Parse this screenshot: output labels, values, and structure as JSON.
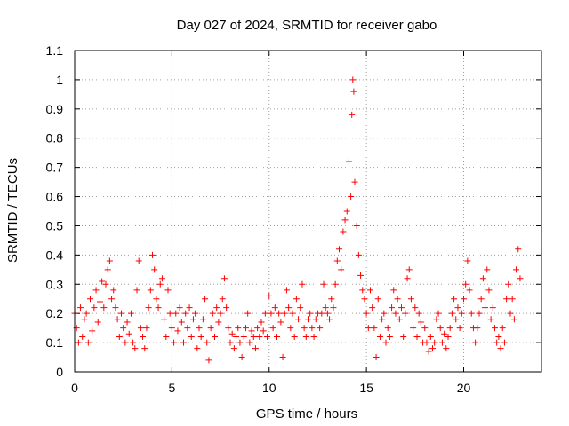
{
  "chart_data": {
    "type": "scatter",
    "title": "Day 027 of 2024, SRMTID for receiver gabo",
    "xlabel": "GPS time / hours",
    "ylabel": "SRMTID / TECUs",
    "xlim": [
      0,
      24
    ],
    "ylim": [
      0,
      1.1
    ],
    "xticks": [
      0,
      5,
      10,
      15,
      20
    ],
    "xtick_labels": [
      "0",
      "5",
      "10",
      "15",
      "20"
    ],
    "yticks": [
      0,
      0.1,
      0.2,
      0.3,
      0.4,
      0.5,
      0.6,
      0.7,
      0.8,
      0.9,
      1,
      1.1
    ],
    "ytick_labels": [
      "0",
      "0.1",
      "0.2",
      "0.3",
      "0.4",
      "0.5",
      "0.6",
      "0.7",
      "0.8",
      "0.9",
      "1",
      "1.1"
    ],
    "grid": true,
    "marker": "+",
    "marker_color": "#ff0000",
    "series": [
      {
        "name": "SRMTID",
        "points": [
          [
            0.0,
            0.2
          ],
          [
            0.1,
            0.15
          ],
          [
            0.2,
            0.1
          ],
          [
            0.3,
            0.22
          ],
          [
            0.4,
            0.12
          ],
          [
            0.5,
            0.18
          ],
          [
            0.6,
            0.2
          ],
          [
            0.7,
            0.1
          ],
          [
            0.8,
            0.25
          ],
          [
            0.9,
            0.14
          ],
          [
            1.0,
            0.22
          ],
          [
            1.1,
            0.28
          ],
          [
            1.2,
            0.17
          ],
          [
            1.3,
            0.24
          ],
          [
            1.4,
            0.31
          ],
          [
            1.5,
            0.22
          ],
          [
            1.6,
            0.3
          ],
          [
            1.7,
            0.35
          ],
          [
            1.8,
            0.38
          ],
          [
            1.9,
            0.25
          ],
          [
            2.0,
            0.28
          ],
          [
            2.1,
            0.22
          ],
          [
            2.2,
            0.18
          ],
          [
            2.3,
            0.12
          ],
          [
            2.4,
            0.2
          ],
          [
            2.5,
            0.15
          ],
          [
            2.6,
            0.1
          ],
          [
            2.7,
            0.17
          ],
          [
            2.8,
            0.13
          ],
          [
            2.9,
            0.2
          ],
          [
            3.0,
            0.1
          ],
          [
            3.1,
            0.08
          ],
          [
            3.2,
            0.28
          ],
          [
            3.3,
            0.38
          ],
          [
            3.4,
            0.15
          ],
          [
            3.5,
            0.12
          ],
          [
            3.6,
            0.08
          ],
          [
            3.7,
            0.15
          ],
          [
            3.8,
            0.22
          ],
          [
            3.9,
            0.28
          ],
          [
            4.0,
            0.4
          ],
          [
            4.1,
            0.35
          ],
          [
            4.2,
            0.25
          ],
          [
            4.3,
            0.22
          ],
          [
            4.4,
            0.3
          ],
          [
            4.5,
            0.32
          ],
          [
            4.6,
            0.18
          ],
          [
            4.7,
            0.12
          ],
          [
            4.8,
            0.28
          ],
          [
            4.9,
            0.2
          ],
          [
            5.0,
            0.15
          ],
          [
            5.1,
            0.1
          ],
          [
            5.2,
            0.2
          ],
          [
            5.3,
            0.14
          ],
          [
            5.4,
            0.22
          ],
          [
            5.5,
            0.17
          ],
          [
            5.6,
            0.1
          ],
          [
            5.7,
            0.2
          ],
          [
            5.8,
            0.15
          ],
          [
            5.9,
            0.22
          ],
          [
            6.0,
            0.12
          ],
          [
            6.1,
            0.18
          ],
          [
            6.2,
            0.2
          ],
          [
            6.3,
            0.08
          ],
          [
            6.4,
            0.15
          ],
          [
            6.5,
            0.12
          ],
          [
            6.6,
            0.18
          ],
          [
            6.7,
            0.25
          ],
          [
            6.8,
            0.1
          ],
          [
            6.9,
            0.04
          ],
          [
            7.0,
            0.15
          ],
          [
            7.1,
            0.2
          ],
          [
            7.2,
            0.12
          ],
          [
            7.3,
            0.22
          ],
          [
            7.4,
            0.17
          ],
          [
            7.5,
            0.2
          ],
          [
            7.6,
            0.25
          ],
          [
            7.7,
            0.32
          ],
          [
            7.8,
            0.22
          ],
          [
            7.9,
            0.15
          ],
          [
            8.0,
            0.1
          ],
          [
            8.1,
            0.13
          ],
          [
            8.2,
            0.08
          ],
          [
            8.3,
            0.12
          ],
          [
            8.4,
            0.15
          ],
          [
            8.5,
            0.1
          ],
          [
            8.6,
            0.05
          ],
          [
            8.7,
            0.12
          ],
          [
            8.8,
            0.15
          ],
          [
            8.9,
            0.2
          ],
          [
            9.0,
            0.1
          ],
          [
            9.1,
            0.14
          ],
          [
            9.2,
            0.12
          ],
          [
            9.3,
            0.08
          ],
          [
            9.4,
            0.15
          ],
          [
            9.5,
            0.12
          ],
          [
            9.6,
            0.17
          ],
          [
            9.7,
            0.14
          ],
          [
            9.8,
            0.2
          ],
          [
            9.9,
            0.12
          ],
          [
            10.0,
            0.26
          ],
          [
            10.1,
            0.2
          ],
          [
            10.2,
            0.15
          ],
          [
            10.3,
            0.22
          ],
          [
            10.4,
            0.12
          ],
          [
            10.5,
            0.2
          ],
          [
            10.6,
            0.17
          ],
          [
            10.7,
            0.05
          ],
          [
            10.8,
            0.2
          ],
          [
            10.9,
            0.28
          ],
          [
            11.0,
            0.22
          ],
          [
            11.1,
            0.15
          ],
          [
            11.2,
            0.2
          ],
          [
            11.3,
            0.12
          ],
          [
            11.4,
            0.25
          ],
          [
            11.5,
            0.18
          ],
          [
            11.6,
            0.22
          ],
          [
            11.7,
            0.3
          ],
          [
            11.8,
            0.15
          ],
          [
            11.9,
            0.12
          ],
          [
            12.0,
            0.18
          ],
          [
            12.1,
            0.2
          ],
          [
            12.2,
            0.15
          ],
          [
            12.3,
            0.12
          ],
          [
            12.4,
            0.18
          ],
          [
            12.5,
            0.2
          ],
          [
            12.6,
            0.15
          ],
          [
            12.7,
            0.2
          ],
          [
            12.8,
            0.3
          ],
          [
            12.9,
            0.22
          ],
          [
            13.0,
            0.2
          ],
          [
            13.1,
            0.18
          ],
          [
            13.2,
            0.25
          ],
          [
            13.3,
            0.22
          ],
          [
            13.4,
            0.3
          ],
          [
            13.5,
            0.38
          ],
          [
            13.6,
            0.42
          ],
          [
            13.7,
            0.35
          ],
          [
            13.8,
            0.48
          ],
          [
            13.9,
            0.52
          ],
          [
            14.0,
            0.55
          ],
          [
            14.1,
            0.72
          ],
          [
            14.2,
            0.6
          ],
          [
            14.25,
            0.88
          ],
          [
            14.3,
            1.0
          ],
          [
            14.35,
            0.96
          ],
          [
            14.4,
            0.65
          ],
          [
            14.5,
            0.5
          ],
          [
            14.6,
            0.4
          ],
          [
            14.7,
            0.33
          ],
          [
            14.8,
            0.28
          ],
          [
            14.9,
            0.25
          ],
          [
            15.0,
            0.2
          ],
          [
            15.1,
            0.15
          ],
          [
            15.2,
            0.28
          ],
          [
            15.3,
            0.22
          ],
          [
            15.4,
            0.15
          ],
          [
            15.5,
            0.05
          ],
          [
            15.6,
            0.25
          ],
          [
            15.7,
            0.12
          ],
          [
            15.8,
            0.18
          ],
          [
            15.9,
            0.2
          ],
          [
            16.0,
            0.1
          ],
          [
            16.1,
            0.15
          ],
          [
            16.2,
            0.12
          ],
          [
            16.3,
            0.22
          ],
          [
            16.4,
            0.28
          ],
          [
            16.5,
            0.2
          ],
          [
            16.6,
            0.25
          ],
          [
            16.7,
            0.18
          ],
          [
            16.8,
            0.22
          ],
          [
            16.9,
            0.12
          ],
          [
            17.0,
            0.2
          ],
          [
            17.1,
            0.32
          ],
          [
            17.2,
            0.35
          ],
          [
            17.3,
            0.25
          ],
          [
            17.4,
            0.15
          ],
          [
            17.5,
            0.22
          ],
          [
            17.6,
            0.12
          ],
          [
            17.7,
            0.2
          ],
          [
            17.8,
            0.17
          ],
          [
            17.9,
            0.1
          ],
          [
            18.0,
            0.15
          ],
          [
            18.1,
            0.1
          ],
          [
            18.2,
            0.07
          ],
          [
            18.3,
            0.12
          ],
          [
            18.4,
            0.08
          ],
          [
            18.5,
            0.1
          ],
          [
            18.6,
            0.18
          ],
          [
            18.7,
            0.2
          ],
          [
            18.8,
            0.15
          ],
          [
            18.9,
            0.1
          ],
          [
            19.0,
            0.13
          ],
          [
            19.1,
            0.08
          ],
          [
            19.2,
            0.12
          ],
          [
            19.3,
            0.15
          ],
          [
            19.4,
            0.2
          ],
          [
            19.5,
            0.25
          ],
          [
            19.6,
            0.18
          ],
          [
            19.7,
            0.22
          ],
          [
            19.8,
            0.15
          ],
          [
            19.9,
            0.2
          ],
          [
            20.0,
            0.25
          ],
          [
            20.1,
            0.3
          ],
          [
            20.2,
            0.38
          ],
          [
            20.3,
            0.28
          ],
          [
            20.4,
            0.2
          ],
          [
            20.5,
            0.15
          ],
          [
            20.6,
            0.1
          ],
          [
            20.7,
            0.15
          ],
          [
            20.8,
            0.2
          ],
          [
            20.9,
            0.25
          ],
          [
            21.0,
            0.32
          ],
          [
            21.1,
            0.22
          ],
          [
            21.2,
            0.35
          ],
          [
            21.3,
            0.28
          ],
          [
            21.4,
            0.18
          ],
          [
            21.5,
            0.22
          ],
          [
            21.6,
            0.15
          ],
          [
            21.7,
            0.1
          ],
          [
            21.8,
            0.12
          ],
          [
            21.9,
            0.08
          ],
          [
            22.0,
            0.15
          ],
          [
            22.1,
            0.1
          ],
          [
            22.2,
            0.25
          ],
          [
            22.3,
            0.3
          ],
          [
            22.4,
            0.2
          ],
          [
            22.5,
            0.25
          ],
          [
            22.6,
            0.18
          ],
          [
            22.7,
            0.35
          ],
          [
            22.8,
            0.42
          ],
          [
            22.9,
            0.32
          ]
        ]
      }
    ]
  }
}
